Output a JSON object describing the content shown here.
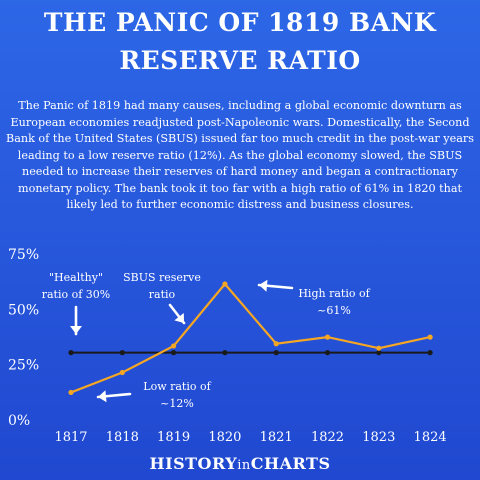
{
  "title_line1": "THE PANIC OF 1819 BANK",
  "title_line2": "RESERVE RATIO",
  "description": "The Panic of 1819 had many causes, including a global economic downturn as European economies readjusted post-Napoleonic wars. Domestically, the Second Bank of the United States (SBUS) issued far too much credit in the post-war years leading to a low reserve ratio (12%). As the global economy slowed, the SBUS needed to increase their reserves of hard money and began a contractionary monetary policy. The bank took it too far with a high ratio of 61% in 1820 that likely led to further economic distress and business closures.",
  "footer": {
    "part1": "HISTORY",
    "part2": "in",
    "part3": "CHARTS"
  },
  "colors": {
    "background": "#2a5de0",
    "reserve_line": "#f5a623",
    "healthy_line": "#1a1a1a",
    "text": "#ffffff"
  },
  "chart_data": {
    "type": "line",
    "categories": [
      "1817",
      "1818",
      "1819",
      "1820",
      "1821",
      "1822",
      "1823",
      "1824"
    ],
    "y_ticks": [
      "0%",
      "25%",
      "50%",
      "75%"
    ],
    "y_tick_values": [
      0,
      25,
      50,
      75
    ],
    "ylim": [
      0,
      75
    ],
    "series": [
      {
        "values": [
          12,
          21,
          33,
          61,
          34,
          37,
          32,
          37
        ]
      },
      {
        "values": [
          30,
          30,
          30,
          30,
          30,
          30,
          30,
          30
        ]
      }
    ],
    "annotations": [
      {
        "text": [
          "\"Healthy\"",
          "ratio of 30%"
        ]
      },
      {
        "text": [
          "SBUS reserve",
          "ratio"
        ]
      },
      {
        "text": [
          "High ratio of",
          "~61%"
        ]
      },
      {
        "text": [
          "Low ratio of",
          "~12%"
        ]
      }
    ],
    "grid": false,
    "legend": "none"
  }
}
